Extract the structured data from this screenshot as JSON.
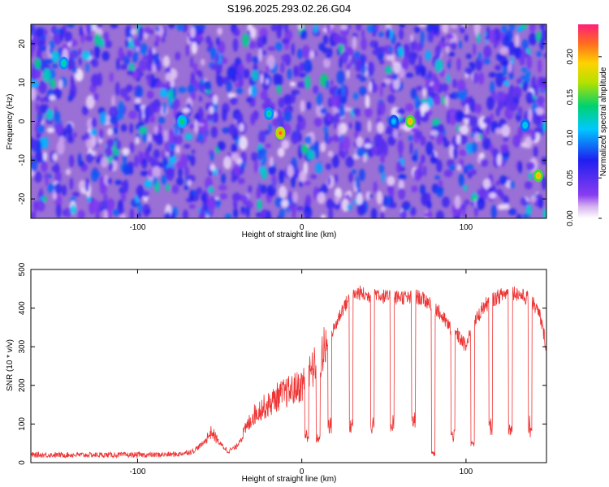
{
  "chart_data": [
    {
      "type": "heatmap",
      "title": "S196.2025.293.02.26.G04",
      "xlabel": "Height of straight line (km)",
      "ylabel": "Frequency (Hz)",
      "xlim": [
        -165,
        149
      ],
      "ylim": [
        -25,
        25
      ],
      "xticks": [
        -100,
        0,
        100
      ],
      "xtick_labels": [
        "-100",
        "0",
        "100"
      ],
      "yticks": [
        -20,
        -10,
        0,
        10,
        20
      ],
      "ytick_labels": [
        "-20",
        "-10",
        "0",
        "10",
        "20"
      ],
      "colorbar": {
        "label": "Normalized spectral amplitude",
        "range": [
          0,
          0.24
        ],
        "ticks": [
          0,
          0.05,
          0.1,
          0.15,
          0.2
        ],
        "tick_labels": [
          "0.00",
          "0.05",
          "0.10",
          "0.15",
          "0.20"
        ]
      },
      "hotspots": [
        {
          "x": -13,
          "y": -3,
          "amplitude": 0.22
        },
        {
          "x": 66,
          "y": 0,
          "amplitude": 0.2
        },
        {
          "x": 144,
          "y": -14,
          "amplitude": 0.2
        },
        {
          "x": -73,
          "y": 0,
          "amplitude": 0.14
        },
        {
          "x": -145,
          "y": 15,
          "amplitude": 0.13
        },
        {
          "x": -20,
          "y": 2,
          "amplitude": 0.13
        },
        {
          "x": 136,
          "y": -1,
          "amplitude": 0.12
        },
        {
          "x": 56,
          "y": 0,
          "amplitude": 0.11
        }
      ]
    },
    {
      "type": "line",
      "xlabel": "Height of straight line (km)",
      "ylabel": "SNR (10 * v/v)",
      "xlim": [
        -165,
        149
      ],
      "ylim": [
        0,
        500
      ],
      "xticks": [
        -100,
        0,
        100
      ],
      "xtick_labels": [
        "-100",
        "0",
        "100"
      ],
      "yticks": [
        0,
        100,
        200,
        300,
        400,
        500
      ],
      "ytick_labels": [
        "0",
        "100",
        "200",
        "300",
        "400",
        "500"
      ],
      "color": "#ee3333",
      "series": [
        {
          "name": "SNR",
          "x": [
            -165,
            -150,
            -130,
            -110,
            -90,
            -75,
            -66,
            -60,
            -55,
            -50,
            -45,
            -40,
            -35,
            -30,
            -25,
            -20,
            -15,
            -10,
            -5,
            0,
            5,
            10,
            15,
            20,
            25,
            30,
            35,
            40,
            45,
            50,
            55,
            60,
            65,
            70,
            75,
            80,
            85,
            90,
            95,
            100,
            105,
            110,
            115,
            120,
            125,
            130,
            135,
            140,
            145,
            149
          ],
          "values": [
            20,
            20,
            20,
            20,
            20,
            22,
            30,
            50,
            80,
            50,
            30,
            40,
            80,
            120,
            140,
            150,
            170,
            180,
            190,
            200,
            230,
            260,
            300,
            350,
            400,
            430,
            440,
            430,
            440,
            430,
            425,
            430,
            425,
            430,
            420,
            410,
            380,
            350,
            330,
            300,
            360,
            400,
            420,
            430,
            440,
            440,
            430,
            420,
            380,
            300
          ]
        }
      ],
      "dropouts": [
        {
          "x": 3,
          "value": 70
        },
        {
          "x": 10,
          "value": 60
        },
        {
          "x": 17,
          "value": 100
        },
        {
          "x": 30,
          "value": 95
        },
        {
          "x": 43,
          "value": 100
        },
        {
          "x": 55,
          "value": 105
        },
        {
          "x": 68,
          "value": 110
        },
        {
          "x": 80,
          "value": 25
        },
        {
          "x": 92,
          "value": 70
        },
        {
          "x": 104,
          "value": 55
        },
        {
          "x": 115,
          "value": 90
        },
        {
          "x": 127,
          "value": 95
        },
        {
          "x": 139,
          "value": 90
        }
      ]
    }
  ]
}
